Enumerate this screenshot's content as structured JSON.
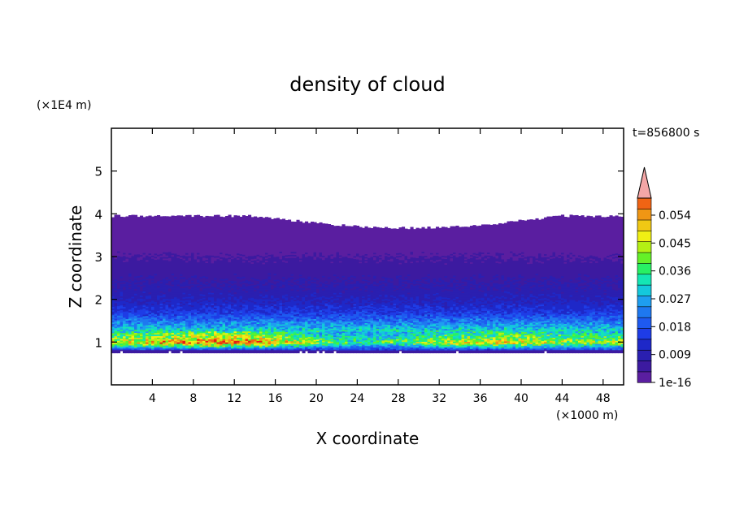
{
  "chart_data": {
    "type": "heatmap",
    "title": "density of cloud",
    "xlabel": "X coordinate",
    "ylabel": "Z coordinate",
    "x_unit": "(×1000 m)",
    "y_unit": "(×1E4 m)",
    "time_label": "t=856800 s",
    "xlim": [
      0,
      50
    ],
    "ylim": [
      0,
      6
    ],
    "xticks": [
      4,
      8,
      12,
      16,
      20,
      24,
      28,
      32,
      36,
      40,
      44,
      48
    ],
    "yticks": [
      1,
      2,
      3,
      4,
      5
    ],
    "grid": false,
    "colorbar": {
      "levels": 17,
      "level_step": 0.0035,
      "labels": [
        "1e-16",
        "0.009",
        "0.018",
        "0.027",
        "0.036",
        "0.045",
        "0.054"
      ],
      "label_values": [
        0,
        0.009,
        0.018,
        0.027,
        0.036,
        0.045,
        0.054
      ],
      "extend": "max",
      "extend_color": "#f4a6a6",
      "colors": [
        "#5a1ea0",
        "#3c1aa0",
        "#2a1fb0",
        "#1e28c8",
        "#1e3ce6",
        "#1e5af0",
        "#1e78f0",
        "#1e9ef0",
        "#14c8dc",
        "#14e6b4",
        "#28f064",
        "#64f028",
        "#b4f014",
        "#f0f014",
        "#f0c814",
        "#f09614",
        "#f06414",
        "#e61e14"
      ]
    },
    "cloud_base_km_e4": 0.75,
    "cloud_top_e4": 3.95,
    "profile": [
      {
        "z": 0.8,
        "density": 0.01
      },
      {
        "z": 0.9,
        "density": 0.03
      },
      {
        "z": 1.0,
        "density": 0.048
      },
      {
        "z": 1.1,
        "density": 0.04
      },
      {
        "z": 1.3,
        "density": 0.03
      },
      {
        "z": 1.5,
        "density": 0.022
      },
      {
        "z": 1.7,
        "density": 0.015
      },
      {
        "z": 2.0,
        "density": 0.01
      },
      {
        "z": 2.4,
        "density": 0.007
      },
      {
        "z": 3.0,
        "density": 0.0035
      },
      {
        "z": 3.5,
        "density": 0.0008
      },
      {
        "z": 3.9,
        "density": 0.0001
      }
    ]
  }
}
